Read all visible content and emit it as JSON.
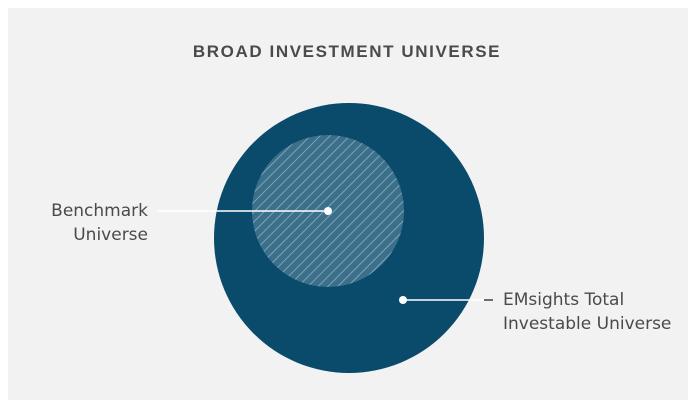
{
  "title": "BROAD INVESTMENT UNIVERSE",
  "colors": {
    "background": "#f2f2f2",
    "outer_circle": "#0a4a6b",
    "inner_circle": "#3b6f8a",
    "hatch": "#8fb0c2",
    "leader_line": "#ffffff",
    "text": "#4a4a4a"
  },
  "labels": {
    "benchmark": {
      "line1": "Benchmark",
      "line2": "Universe"
    },
    "total": {
      "line1": "EMsights Total",
      "line2": "Investable Universe"
    }
  }
}
